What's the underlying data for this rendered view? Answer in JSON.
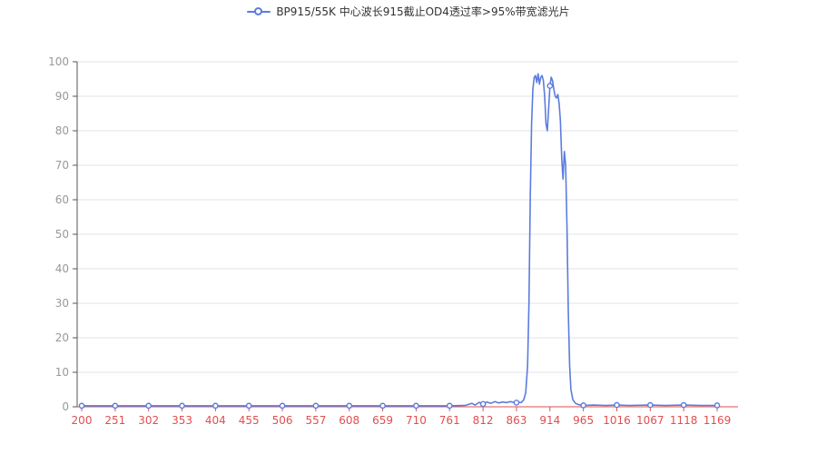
{
  "chart_data": {
    "type": "line",
    "title": "BP915/55K 中心波长915截止OD4透过率>95%带宽滤光片",
    "xlabel": "",
    "ylabel": "",
    "xlim": [
      200,
      1169
    ],
    "ylim": [
      0,
      100
    ],
    "x_ticks": [
      200,
      251,
      302,
      353,
      404,
      455,
      506,
      557,
      608,
      659,
      710,
      761,
      812,
      863,
      914,
      965,
      1016,
      1067,
      1118,
      1169
    ],
    "y_ticks": [
      0,
      10,
      20,
      30,
      40,
      50,
      60,
      70,
      80,
      90,
      100
    ],
    "grid": true,
    "legend_position": "top",
    "colors": {
      "grid": "#e3e3e3",
      "y_axis": "#555555",
      "y_label": "#999999",
      "x_axis": "#e04f4f",
      "x_label": "#e04f4f",
      "legend_text": "#333333",
      "marker_fill": "#ffffff"
    },
    "series": [
      {
        "name": "BP915/55K 中心波长915截止OD4透过率>95%带宽滤光片",
        "color": "#5b7cdd",
        "marker": "circle",
        "points": [
          [
            200,
            0.3
          ],
          [
            251,
            0.3
          ],
          [
            302,
            0.3
          ],
          [
            353,
            0.3
          ],
          [
            404,
            0.3
          ],
          [
            455,
            0.3
          ],
          [
            506,
            0.3
          ],
          [
            557,
            0.3
          ],
          [
            608,
            0.3
          ],
          [
            659,
            0.3
          ],
          [
            710,
            0.3
          ],
          [
            761,
            0.3
          ],
          [
            785,
            0.4
          ],
          [
            795,
            1.0
          ],
          [
            800,
            0.5
          ],
          [
            806,
            1.3
          ],
          [
            812,
            0.8
          ],
          [
            818,
            1.4
          ],
          [
            824,
            1.0
          ],
          [
            830,
            1.5
          ],
          [
            836,
            1.1
          ],
          [
            842,
            1.4
          ],
          [
            848,
            1.2
          ],
          [
            854,
            1.5
          ],
          [
            860,
            1.2
          ],
          [
            866,
            1.4
          ],
          [
            870,
            1.2
          ],
          [
            874,
            2
          ],
          [
            877,
            4
          ],
          [
            880,
            12
          ],
          [
            882,
            30
          ],
          [
            884,
            60
          ],
          [
            886,
            82
          ],
          [
            888,
            92
          ],
          [
            890,
            95.5
          ],
          [
            892,
            96
          ],
          [
            894,
            94
          ],
          [
            896,
            96.5
          ],
          [
            898,
            93.5
          ],
          [
            900,
            95.5
          ],
          [
            902,
            96
          ],
          [
            904,
            94.5
          ],
          [
            906,
            90
          ],
          [
            908,
            82
          ],
          [
            910,
            80
          ],
          [
            912,
            86
          ],
          [
            914,
            93
          ],
          [
            916,
            95.5
          ],
          [
            918,
            94.5
          ],
          [
            920,
            92
          ],
          [
            922,
            90
          ],
          [
            924,
            89.5
          ],
          [
            926,
            90.5
          ],
          [
            928,
            88
          ],
          [
            930,
            83
          ],
          [
            932,
            72
          ],
          [
            934,
            66
          ],
          [
            936,
            74
          ],
          [
            938,
            70
          ],
          [
            940,
            52
          ],
          [
            942,
            28
          ],
          [
            944,
            12
          ],
          [
            946,
            5
          ],
          [
            949,
            2
          ],
          [
            953,
            1
          ],
          [
            958,
            0.6
          ],
          [
            965,
            0.4
          ],
          [
            980,
            0.5
          ],
          [
            1000,
            0.4
          ],
          [
            1016,
            0.5
          ],
          [
            1035,
            0.4
          ],
          [
            1067,
            0.5
          ],
          [
            1090,
            0.4
          ],
          [
            1118,
            0.5
          ],
          [
            1145,
            0.4
          ],
          [
            1169,
            0.4
          ]
        ]
      }
    ]
  }
}
